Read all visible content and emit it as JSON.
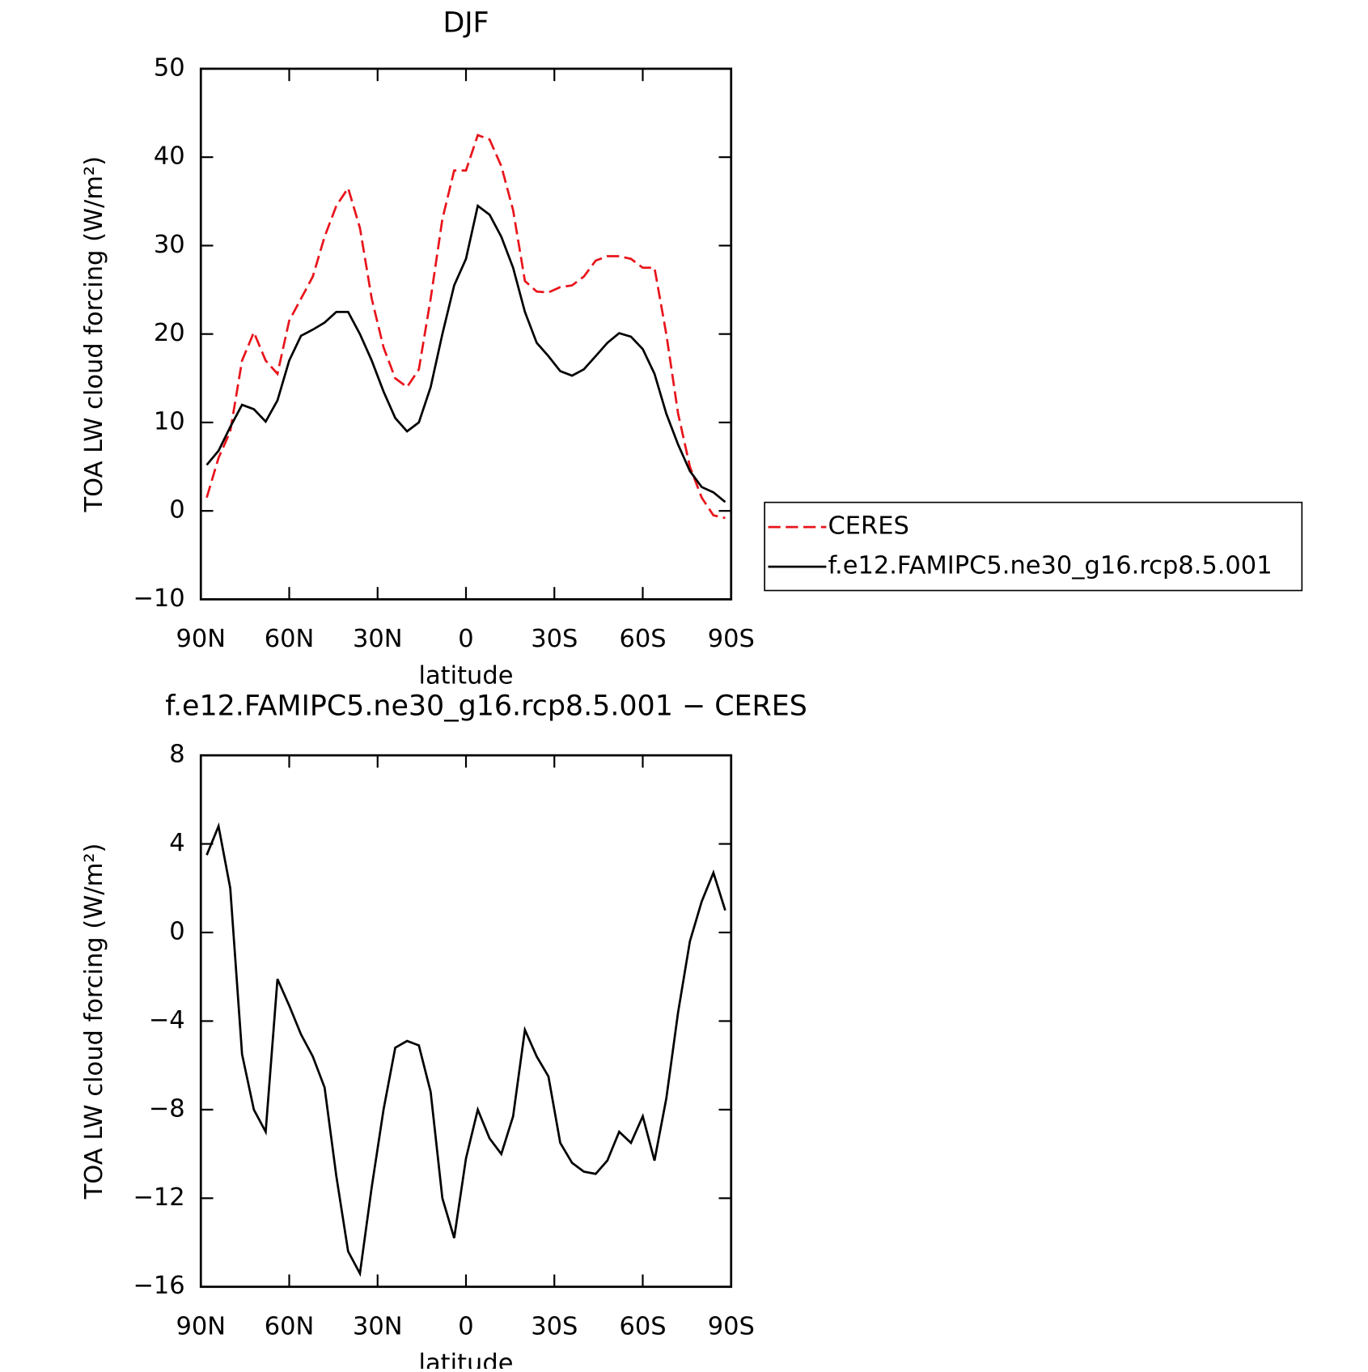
{
  "chart_data": [
    {
      "type": "line",
      "title": "DJF",
      "x_label": "latitude",
      "y_label": "TOA LW cloud forcing (W/m²)",
      "x": [
        88,
        84,
        80,
        76,
        72,
        68,
        64,
        60,
        56,
        52,
        48,
        44,
        40,
        36,
        32,
        28,
        24,
        20,
        16,
        12,
        8,
        4,
        0,
        -4,
        -8,
        -12,
        -16,
        -20,
        -24,
        -28,
        -32,
        -36,
        -40,
        -44,
        -48,
        -52,
        -56,
        -60,
        -64,
        -68,
        -72,
        -76,
        -80,
        -84,
        -88
      ],
      "series": [
        {
          "name": "CERES",
          "color": "#e8141b",
          "linestyle": "dashed",
          "values": [
            1.5,
            6,
            9,
            17,
            20.2,
            17,
            15.5,
            21.5,
            24,
            26.5,
            31,
            34.5,
            36.5,
            32,
            24,
            18.5,
            15,
            14,
            16,
            24,
            33,
            38.5,
            38.5,
            42.5,
            42,
            39,
            34,
            26,
            24.8,
            24.7,
            25.3,
            25.5,
            26.5,
            28.3,
            28.8,
            28.8,
            28.5,
            27.5,
            27.5,
            20,
            11,
            5,
            1.5,
            -0.5,
            -0.8
          ]
        },
        {
          "name": "f.e12.FAMIPC5.ne30_g16.rcp8.5.001",
          "color": "#000000",
          "linestyle": "solid",
          "values": [
            5.2,
            6.8,
            9.5,
            12,
            11.5,
            10.1,
            12.5,
            17,
            19.8,
            20.5,
            21.3,
            22.5,
            22.5,
            20,
            17,
            13.5,
            10.5,
            9,
            10,
            14,
            20,
            25.5,
            28.5,
            34.5,
            33.5,
            31,
            27.5,
            22.5,
            19,
            17.5,
            15.8,
            15.3,
            16,
            17.5,
            19,
            20.1,
            19.7,
            18.3,
            15.5,
            11,
            7.5,
            4.5,
            2.7,
            2.1,
            1
          ]
        }
      ],
      "xlim": [
        90,
        -90
      ],
      "xticks": [
        {
          "value": 90,
          "label": "90N"
        },
        {
          "value": 60,
          "label": "60N"
        },
        {
          "value": 30,
          "label": "30N"
        },
        0,
        {
          "value": -30,
          "label": "30S"
        },
        {
          "value": -60,
          "label": "60S"
        },
        {
          "value": -90,
          "label": "90S"
        }
      ],
      "ylim": [
        -10,
        50
      ],
      "yticks": [
        {
          "value": -10,
          "label": "−10"
        },
        0,
        10,
        20,
        30,
        40,
        50
      ]
    },
    {
      "type": "line",
      "title": "f.e12.FAMIPC5.ne30_g16.rcp8.5.001 − CERES",
      "x_label": "latitude",
      "y_label": "TOA LW cloud forcing (W/m²)",
      "x": [
        88,
        84,
        80,
        76,
        72,
        68,
        64,
        60,
        56,
        52,
        48,
        44,
        40,
        36,
        32,
        28,
        24,
        20,
        16,
        12,
        8,
        4,
        0,
        -4,
        -8,
        -12,
        -16,
        -20,
        -24,
        -28,
        -32,
        -36,
        -40,
        -44,
        -48,
        -52,
        -56,
        -60,
        -64,
        -68,
        -72,
        -76,
        -80,
        -84,
        -88
      ],
      "series": [
        {
          "color": "#000000",
          "linestyle": "solid",
          "values": [
            3.5,
            4.8,
            2,
            -5.5,
            -8,
            -9,
            -2.1,
            -3.3,
            -4.6,
            -5.6,
            -7,
            -11,
            -14.4,
            -15.4,
            -11.5,
            -8,
            -5.2,
            -4.9,
            -5.1,
            -7.2,
            -12,
            -13.8,
            -10.2,
            -8,
            -9.3,
            -10,
            -8.3,
            -4.4,
            -5.6,
            -6.5,
            -9.5,
            -10.4,
            -10.8,
            -10.9,
            -10.3,
            -9,
            -9.5,
            -8.3,
            -10.3,
            -7.5,
            -3.6,
            -0.4,
            1.4,
            2.7,
            1
          ]
        }
      ],
      "xlim": [
        90,
        -90
      ],
      "xticks": [
        {
          "value": 90,
          "label": "90N"
        },
        {
          "value": 60,
          "label": "60N"
        },
        {
          "value": 30,
          "label": "30N"
        },
        0,
        {
          "value": -30,
          "label": "30S"
        },
        {
          "value": -60,
          "label": "60S"
        },
        {
          "value": -90,
          "label": "90S"
        }
      ],
      "ylim": [
        -16,
        8
      ],
      "yticks": [
        {
          "value": -16,
          "label": "−16"
        },
        {
          "value": -12,
          "label": "−12"
        },
        {
          "value": -8,
          "label": "−8"
        },
        {
          "value": -4,
          "label": "−4"
        },
        0,
        4,
        8
      ]
    }
  ]
}
